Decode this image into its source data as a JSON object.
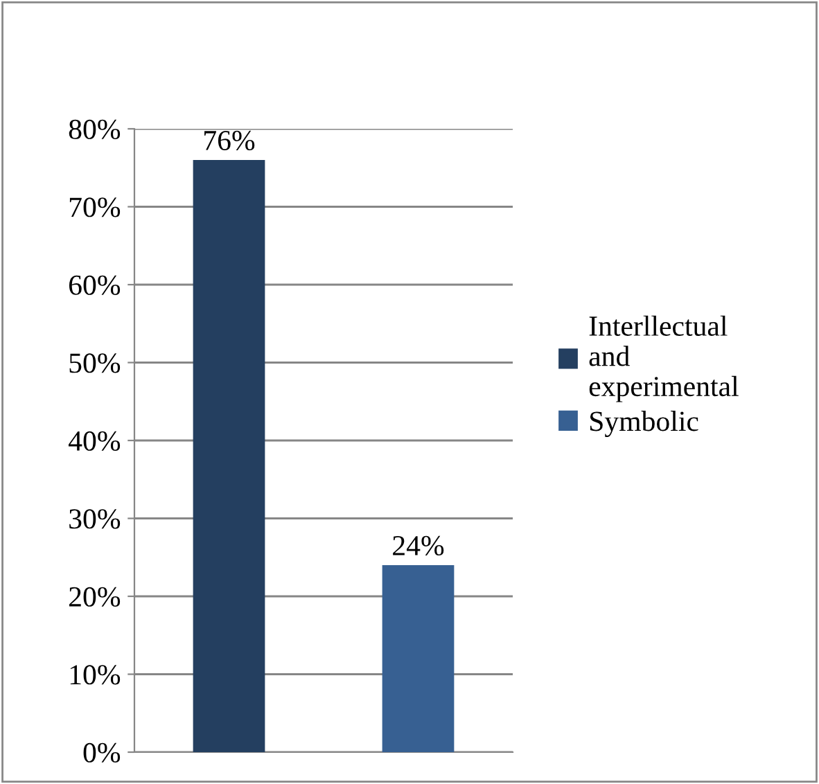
{
  "chart_data": {
    "type": "bar",
    "categories": [
      null,
      null
    ],
    "series": [
      {
        "name": "Interllectual and experimental",
        "color": "#243f60",
        "values": [
          76,
          null
        ],
        "value_labels": [
          "76%",
          null
        ]
      },
      {
        "name": "Symbolic",
        "color": "#376092",
        "values": [
          null,
          24
        ],
        "value_labels": [
          null,
          "24%"
        ]
      }
    ],
    "ylim": [
      0,
      80
    ],
    "yticks": [
      {
        "value": 0,
        "label": "0%"
      },
      {
        "value": 10,
        "label": "10%"
      },
      {
        "value": 20,
        "label": "20%"
      },
      {
        "value": 30,
        "label": "30%"
      },
      {
        "value": 40,
        "label": "40%"
      },
      {
        "value": 50,
        "label": "50%"
      },
      {
        "value": 60,
        "label": "60%"
      },
      {
        "value": 70,
        "label": "70%"
      },
      {
        "value": 80,
        "label": "80%"
      }
    ],
    "grid": "y",
    "legend": "right"
  }
}
